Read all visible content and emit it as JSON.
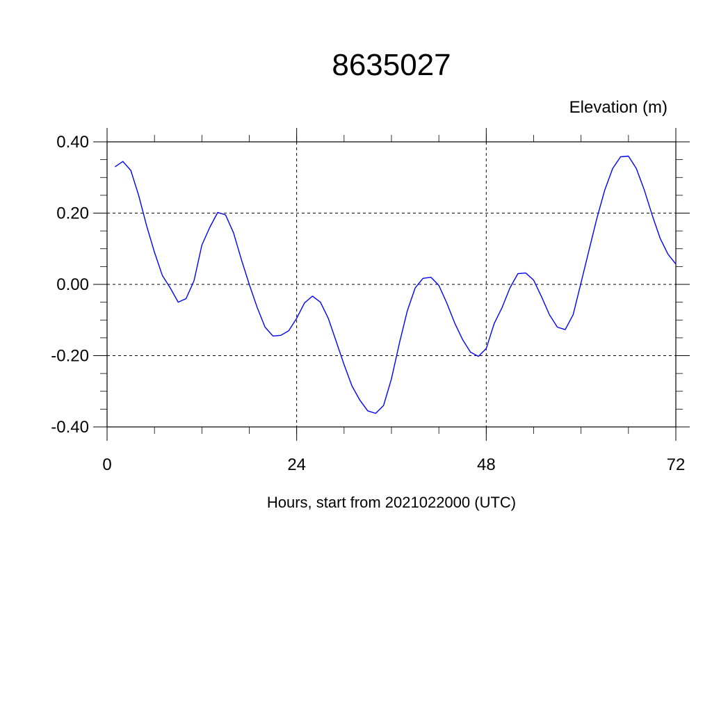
{
  "chart_data": {
    "type": "line",
    "title": "8635027",
    "ylabel": "Elevation (m)",
    "xlabel": "Hours, start from 2021022000 (UTC)",
    "xlim": [
      0,
      72
    ],
    "ylim": [
      -0.4,
      0.4
    ],
    "x_ticks": [
      0,
      24,
      48,
      72
    ],
    "x_tick_labels": [
      "0",
      "24",
      "48",
      "72"
    ],
    "y_ticks": [
      0.4,
      0.2,
      0.0,
      -0.2,
      -0.4
    ],
    "y_tick_labels": [
      "0.40",
      "0.20",
      "0.00",
      "-0.20",
      "-0.40"
    ],
    "grid": true,
    "series": [
      {
        "color": "#0000ff",
        "x": [
          1,
          2,
          3,
          4,
          5,
          6,
          7,
          8,
          9,
          10,
          11,
          12,
          13,
          14,
          15,
          16,
          17,
          18,
          19,
          20,
          21,
          22,
          23,
          24,
          25,
          26,
          27,
          28,
          29,
          30,
          31,
          32,
          33,
          34,
          35,
          36,
          37,
          38,
          39,
          40,
          41,
          42,
          43,
          44,
          45,
          46,
          47,
          48,
          49,
          50,
          51,
          52,
          53,
          54,
          55,
          56,
          57,
          58,
          59,
          60,
          61,
          62,
          63,
          64,
          65,
          66,
          67,
          68,
          69,
          70,
          71,
          72
        ],
        "values": [
          0.33,
          0.345,
          0.32,
          0.25,
          0.165,
          0.09,
          0.025,
          -0.01,
          -0.05,
          -0.04,
          0.01,
          0.11,
          0.16,
          0.202,
          0.195,
          0.145,
          0.07,
          0.0,
          -0.065,
          -0.12,
          -0.145,
          -0.143,
          -0.13,
          -0.095,
          -0.052,
          -0.033,
          -0.05,
          -0.095,
          -0.16,
          -0.225,
          -0.285,
          -0.325,
          -0.355,
          -0.362,
          -0.34,
          -0.265,
          -0.165,
          -0.075,
          -0.01,
          0.017,
          0.02,
          -0.003,
          -0.052,
          -0.108,
          -0.155,
          -0.19,
          -0.202,
          -0.18,
          -0.11,
          -0.065,
          -0.01,
          0.03,
          0.032,
          0.012,
          -0.035,
          -0.085,
          -0.12,
          -0.127,
          -0.085,
          0.005,
          0.095,
          0.185,
          0.265,
          0.325,
          0.358,
          0.36,
          0.325,
          0.265,
          0.195,
          0.13,
          0.085,
          0.057
        ]
      }
    ]
  }
}
